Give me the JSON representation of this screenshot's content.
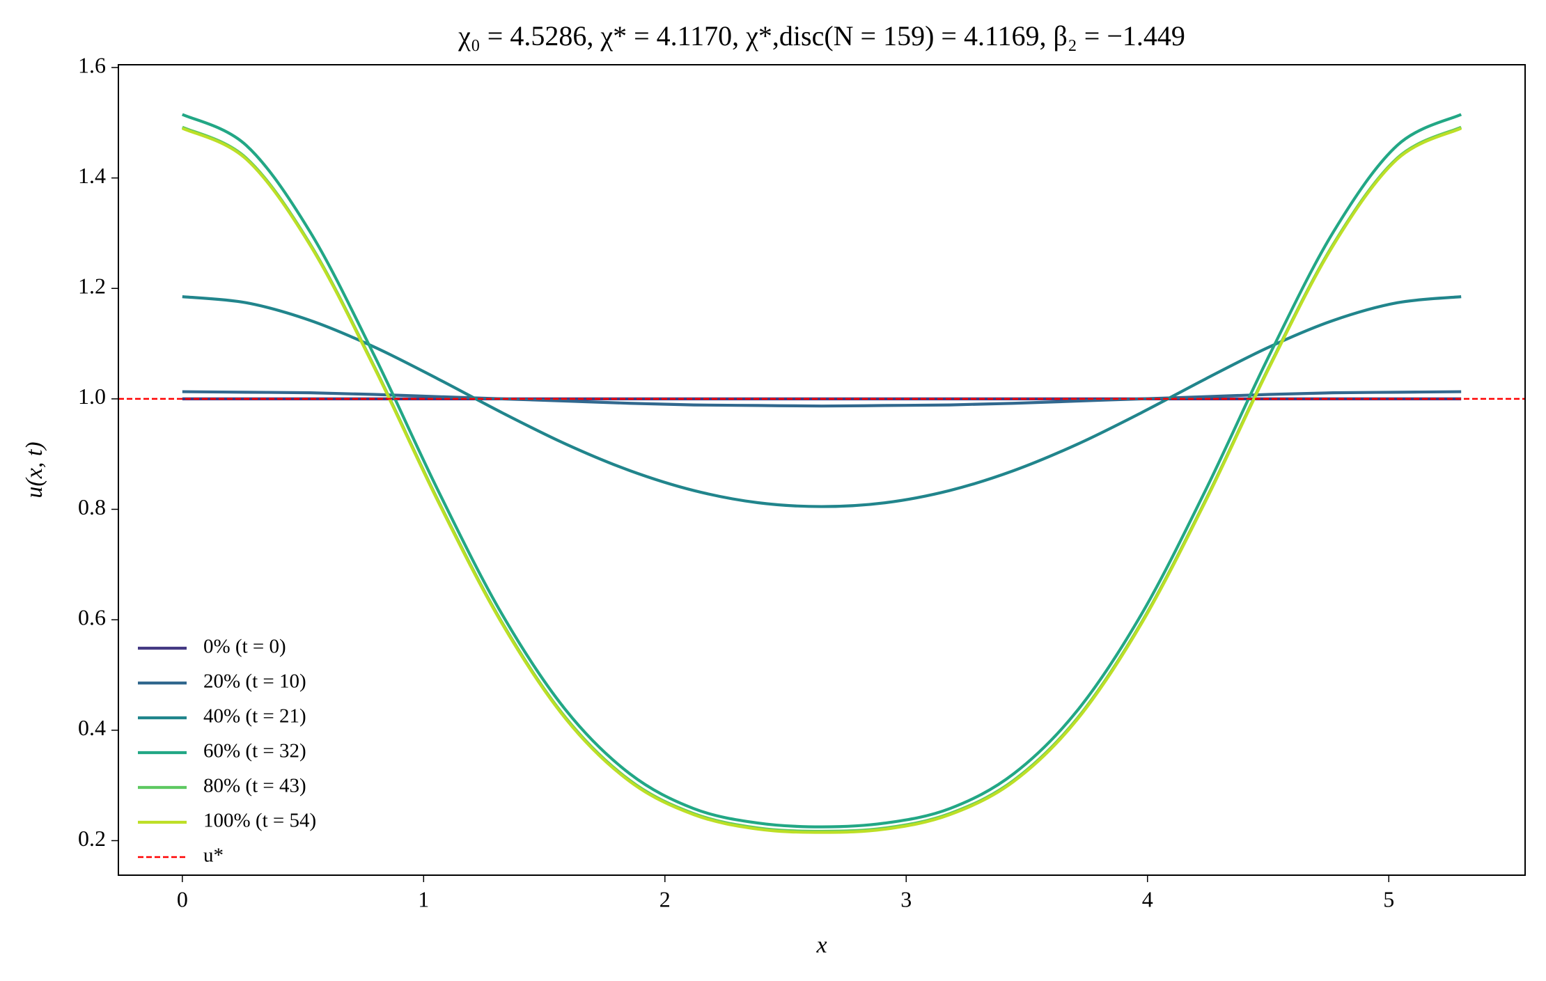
{
  "chart_data": {
    "type": "line",
    "title": "χ₀ = 4.5286,  χ* = 4.1170,  χ*,disc(N = 159) = 4.1169,  β₂ = −1.449",
    "x_label": "x",
    "y_label": "u(x, t)",
    "x": [
      0,
      0.265,
      0.53,
      0.795,
      1.06,
      1.325,
      1.59,
      1.855,
      2.12,
      2.385,
      2.65,
      2.915,
      3.18,
      3.445,
      3.71,
      3.975,
      4.24,
      4.505,
      4.77,
      5.035,
      5.3
    ],
    "series": [
      {
        "name": "0% (t = 0)",
        "color": "#443983",
        "values": [
          1.0,
          1.0,
          1.0,
          1.0,
          1.0,
          1.0,
          1.0,
          1.0,
          1.0,
          1.0,
          1.0,
          1.0,
          1.0,
          1.0,
          1.0,
          1.0,
          1.0,
          1.0,
          1.0,
          1.0,
          1.0
        ]
      },
      {
        "name": "20% (t = 10)",
        "color": "#31688e",
        "values": [
          1.013,
          1.012,
          1.011,
          1.008,
          1.004,
          1.0,
          0.996,
          0.992,
          0.989,
          0.988,
          0.987,
          0.988,
          0.989,
          0.992,
          0.996,
          1.0,
          1.004,
          1.008,
          1.011,
          1.012,
          1.013
        ]
      },
      {
        "name": "40% (t = 21)",
        "color": "#21858c",
        "values": [
          1.185,
          1.174,
          1.142,
          1.094,
          1.036,
          0.975,
          0.918,
          0.87,
          0.834,
          0.812,
          0.805,
          0.812,
          0.834,
          0.87,
          0.918,
          0.975,
          1.036,
          1.094,
          1.142,
          1.174,
          1.185
        ]
      },
      {
        "name": "60% (t = 32)",
        "color": "#22a785",
        "values": [
          1.515,
          1.459,
          1.302,
          1.079,
          0.834,
          0.61,
          0.436,
          0.321,
          0.258,
          0.232,
          0.225,
          0.232,
          0.258,
          0.321,
          0.436,
          0.61,
          0.834,
          1.079,
          1.302,
          1.459,
          1.515
        ]
      },
      {
        "name": "80% (t = 43)",
        "color": "#5ec962",
        "values": [
          1.492,
          1.436,
          1.28,
          1.059,
          0.816,
          0.595,
          0.422,
          0.309,
          0.249,
          0.223,
          0.217,
          0.223,
          0.249,
          0.309,
          0.422,
          0.595,
          0.816,
          1.059,
          1.28,
          1.436,
          1.492
        ]
      },
      {
        "name": "100% (t = 54)",
        "color": "#bddf26",
        "values": [
          1.49,
          1.434,
          1.278,
          1.057,
          0.814,
          0.593,
          0.42,
          0.307,
          0.247,
          0.221,
          0.215,
          0.221,
          0.247,
          0.307,
          0.42,
          0.593,
          0.814,
          1.057,
          1.278,
          1.434,
          1.49
        ]
      }
    ],
    "hlines": [
      {
        "name": "u*",
        "y": 1,
        "color": "#ff0000"
      }
    ],
    "xlim": [
      -0.265,
      5.565
    ],
    "xticks": [
      0,
      1,
      2,
      3,
      4,
      5
    ],
    "ylim": [
      0.1375,
      1.605
    ],
    "yticks": [
      0.2,
      0.4,
      0.6,
      0.8,
      {
        "value": 1,
        "label": "1.0"
      },
      1.2,
      1.4,
      1.6
    ],
    "legend": "lower left"
  }
}
